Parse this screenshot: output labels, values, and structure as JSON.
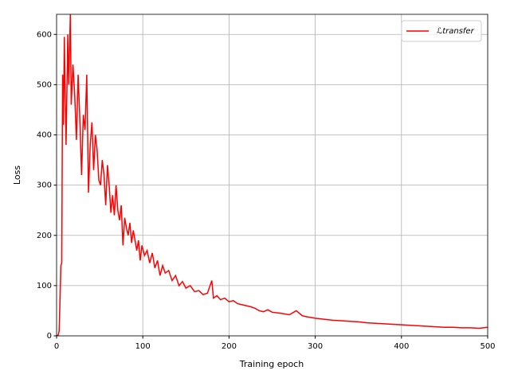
{
  "chart_data": {
    "type": "line",
    "x_label": "Training epoch",
    "y_label": "Loss",
    "x": [
      0,
      2,
      3,
      5,
      6,
      7,
      8,
      9,
      10,
      11,
      13,
      14,
      16,
      17,
      19,
      21,
      23,
      25,
      27,
      29,
      31,
      33,
      35,
      37,
      39,
      41,
      43,
      45,
      47,
      49,
      51,
      53,
      55,
      57,
      59,
      61,
      63,
      65,
      67,
      69,
      71,
      73,
      75,
      77,
      79,
      81,
      83,
      85,
      87,
      89,
      91,
      93,
      95,
      97,
      99,
      102,
      105,
      108,
      111,
      114,
      117,
      120,
      123,
      126,
      130,
      134,
      138,
      142,
      146,
      150,
      155,
      160,
      165,
      170,
      175,
      180,
      182,
      186,
      190,
      195,
      200,
      205,
      210,
      215,
      220,
      225,
      230,
      235,
      240,
      245,
      250,
      260,
      270,
      278,
      285,
      290,
      300,
      310,
      320,
      330,
      340,
      350,
      360,
      370,
      380,
      390,
      400,
      410,
      420,
      430,
      440,
      450,
      460,
      470,
      480,
      490,
      500
    ],
    "series": [
      {
        "name": "ℒtransfer",
        "color": "#ff0000",
        "values": [
          0,
          2,
          10,
          140,
          145,
          520,
          420,
          595,
          480,
          380,
          600,
          500,
          640,
          460,
          540,
          480,
          390,
          520,
          430,
          320,
          440,
          410,
          520,
          285,
          380,
          425,
          330,
          400,
          370,
          310,
          300,
          350,
          320,
          260,
          340,
          300,
          245,
          280,
          240,
          300,
          250,
          230,
          260,
          180,
          235,
          215,
          200,
          225,
          185,
          210,
          190,
          170,
          190,
          150,
          180,
          160,
          170,
          145,
          165,
          135,
          150,
          120,
          140,
          125,
          130,
          110,
          120,
          100,
          108,
          95,
          100,
          88,
          90,
          82,
          85,
          110,
          75,
          80,
          72,
          75,
          68,
          70,
          64,
          62,
          60,
          58,
          55,
          50,
          48,
          52,
          47,
          45,
          42,
          50,
          40,
          38,
          35,
          33,
          31,
          30,
          29,
          28,
          26,
          25,
          24,
          23,
          22,
          21,
          20,
          19,
          18,
          17,
          17,
          16,
          16,
          15,
          17
        ]
      }
    ],
    "xlim": [
      0,
      500
    ],
    "ylim": [
      0,
      640
    ],
    "xticks": [
      0,
      100,
      200,
      300,
      400,
      500
    ],
    "yticks": [
      0,
      100,
      200,
      300,
      400,
      500,
      600
    ],
    "grid": true,
    "legend": "upper right"
  }
}
